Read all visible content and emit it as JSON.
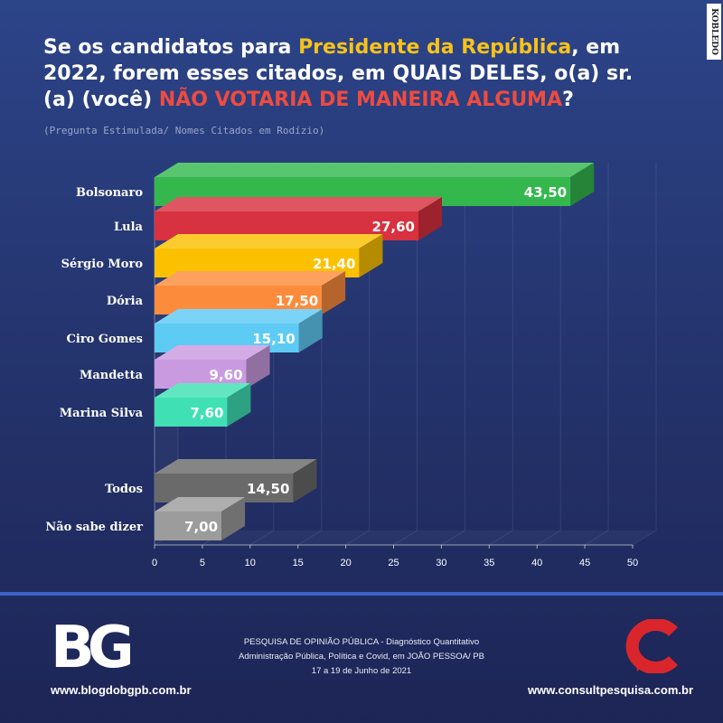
{
  "title": {
    "part1": "Se os candidatos para ",
    "highlight1": "Presidente da República",
    "part2": ", em 2022, forem esses citados, em QUAIS DELES, o(a) sr.(a) (você) ",
    "highlight2": "NÃO VOTARIA DE MANEIRA ALGUMA",
    "part3": "?"
  },
  "subtitle": "(Pregunta Estimulada/ Nomes Citados em Rodízio)",
  "watermark": "KOBLEDO",
  "chart_data": {
    "type": "bar",
    "orientation": "horizontal",
    "style": "3d",
    "categories": [
      "Bolsonaro",
      "Lula",
      "Sérgio Moro",
      "Dória",
      "Ciro Gomes",
      "Mandetta",
      "Marina Silva",
      "Todos",
      "Não sabe dizer"
    ],
    "values": [
      43.5,
      27.6,
      21.4,
      17.5,
      15.1,
      9.6,
      7.6,
      14.5,
      7.0
    ],
    "value_labels": [
      "43,50",
      "27,60",
      "21,40",
      "17,50",
      "15,10",
      "9,60",
      "7,60",
      "14,50",
      "7,00"
    ],
    "colors": [
      "#34b84e",
      "#d8313f",
      "#fbc100",
      "#fc8c3c",
      "#5ecbf5",
      "#c99ae0",
      "#40e0b5",
      "#6a6a6a",
      "#9c9c9c"
    ],
    "xlim": [
      0,
      50
    ],
    "xticks": [
      0,
      5,
      10,
      15,
      20,
      25,
      30,
      35,
      40,
      45,
      50
    ],
    "grid": true
  },
  "footer": {
    "brand_left": "BG",
    "site_left": "www.blogdobgpb.com.br",
    "line1": "PESQUISA DE OPINIÃO PÚBLICA - Diagnóstico Quantitativo",
    "line2": "Administração Pública, Política e Covid, em JOÃO PESSOA/ PB",
    "line3": "17 a 19 de Junho de 2021",
    "site_right": "www.consultpesquisa.com.br"
  },
  "colors": {
    "background": "#25356f",
    "accent_yellow": "#f7c21b",
    "accent_red": "#ef4b3f",
    "divider": "#3d62c6",
    "consult_red": "#d9262c"
  }
}
